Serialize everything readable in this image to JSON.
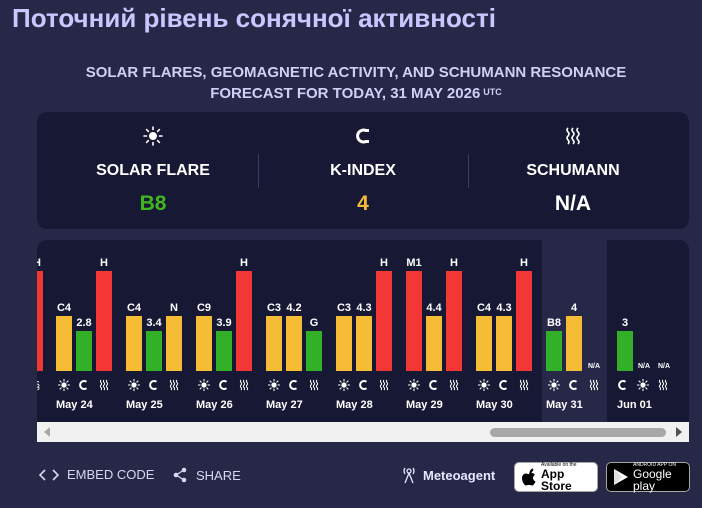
{
  "page_title": "Поточний рівень сонячної активності",
  "subtitle": {
    "line1": "SOLAR FLARES, GEOMAGNETIC ACTIVITY, AND SCHUMANN RESONANCE",
    "line2": "FORECAST FOR TODAY, 31 MAY 2026",
    "tz": "UTC"
  },
  "summary": {
    "solar_flare": {
      "icon": "sun-icon",
      "label": "SOLAR FLARE",
      "value": "B8",
      "color": "#3fb820"
    },
    "k_index": {
      "icon": "magnet-icon",
      "label": "K-INDEX",
      "value": "4",
      "color": "#f6ba38"
    },
    "schumann": {
      "icon": "waves-icon",
      "label": "SCHUMANN",
      "value": "N/A",
      "color": "#ffffff"
    }
  },
  "colors": {
    "green": "#32b028",
    "yellow": "#f6bc35",
    "red": "#f33735",
    "panel": "#161834",
    "background": "#272848",
    "forecast_panel": "#272848"
  },
  "history": {
    "partial_day": {
      "schumann_label": "H",
      "level": 1.0,
      "color": "red"
    },
    "days": [
      {
        "date": "May 24",
        "flare": {
          "label": "C4",
          "level": 0.55,
          "color": "yellow"
        },
        "kindex": {
          "label": "2.8",
          "level": 0.4,
          "color": "green"
        },
        "schumann": {
          "label": "H",
          "level": 1.0,
          "color": "red"
        }
      },
      {
        "date": "May 25",
        "flare": {
          "label": "C4",
          "level": 0.55,
          "color": "yellow"
        },
        "kindex": {
          "label": "3.4",
          "level": 0.4,
          "color": "green"
        },
        "schumann": {
          "label": "N",
          "level": 0.55,
          "color": "yellow"
        }
      },
      {
        "date": "May 26",
        "flare": {
          "label": "C9",
          "level": 0.55,
          "color": "yellow"
        },
        "kindex": {
          "label": "3.9",
          "level": 0.4,
          "color": "green"
        },
        "schumann": {
          "label": "H",
          "level": 1.0,
          "color": "red"
        }
      },
      {
        "date": "May 27",
        "flare": {
          "label": "C3",
          "level": 0.55,
          "color": "yellow"
        },
        "kindex": {
          "label": "4.2",
          "level": 0.55,
          "color": "yellow"
        },
        "schumann": {
          "label": "G",
          "level": 0.4,
          "color": "green"
        }
      },
      {
        "date": "May 28",
        "flare": {
          "label": "C3",
          "level": 0.55,
          "color": "yellow"
        },
        "kindex": {
          "label": "4.3",
          "level": 0.55,
          "color": "yellow"
        },
        "schumann": {
          "label": "H",
          "level": 1.0,
          "color": "red"
        }
      },
      {
        "date": "May 29",
        "flare": {
          "label": "M1",
          "level": 1.0,
          "color": "red"
        },
        "kindex": {
          "label": "4.4",
          "level": 0.55,
          "color": "yellow"
        },
        "schumann": {
          "label": "H",
          "level": 1.0,
          "color": "red"
        }
      },
      {
        "date": "May 30",
        "flare": {
          "label": "C4",
          "level": 0.55,
          "color": "yellow"
        },
        "kindex": {
          "label": "4.3",
          "level": 0.55,
          "color": "yellow"
        },
        "schumann": {
          "label": "H",
          "level": 1.0,
          "color": "red"
        }
      },
      {
        "date": "May 31",
        "flare": {
          "label": "B8",
          "level": 0.4,
          "color": "green"
        },
        "kindex": {
          "label": "4",
          "level": 0.55,
          "color": "yellow"
        },
        "schumann": {
          "label": "N/A",
          "level": 0,
          "color": "none"
        }
      }
    ],
    "forecast_day": {
      "date": "Jun 01",
      "kindex": {
        "label": "3",
        "level": 0.4,
        "color": "green"
      },
      "flare": {
        "label": "N/A",
        "level": 0,
        "color": "none"
      },
      "schumann": {
        "label": "N/A",
        "level": 0,
        "color": "none"
      }
    }
  },
  "footer": {
    "embed": "EMBED CODE",
    "share": "SHARE",
    "brand": "Meteoagent",
    "appstore": {
      "small": "Available on the",
      "big": "App Store"
    },
    "googleplay": {
      "small": "ANDROID APP ON",
      "big": "Google play"
    }
  }
}
